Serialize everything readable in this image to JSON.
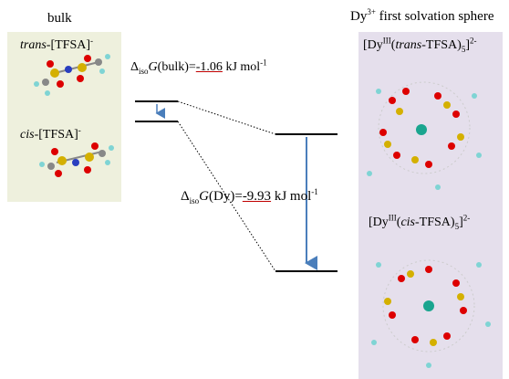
{
  "bulk": {
    "title": "bulk",
    "trans": {
      "iso": "trans",
      "name": "-[TFSA]",
      "charge": "-"
    },
    "cis": {
      "iso": "cis",
      "name": "-[TFSA]",
      "charge": "-"
    }
  },
  "dy": {
    "title_base": "Dy",
    "title_sup": "3+",
    "title_rest": " first solvation sphere",
    "trans_complex": {
      "open": "[Dy",
      "ox": "III",
      "paren": "(",
      "iso": "trans",
      "ligand": "-TFSA)",
      "sub": "5",
      "close": "]",
      "charge": "2-"
    },
    "cis_complex": {
      "open": "[Dy",
      "ox": "III",
      "paren": "(",
      "iso": "cis",
      "ligand": "-TFSA)",
      "sub": "5",
      "close": "]",
      "charge": "2-"
    }
  },
  "energy": {
    "bulk": {
      "delta": "Δ",
      "sub": "iso",
      "g": "G",
      "label": "(bulk)=",
      "value": -1.06,
      "unit": "kJ mol",
      "exp": "-1"
    },
    "dy": {
      "delta": "Δ",
      "sub": "iso",
      "g": "G",
      "label": "(Dy)=",
      "value": -9.93,
      "unit": "kJ mol",
      "exp": "-1"
    }
  }
}
